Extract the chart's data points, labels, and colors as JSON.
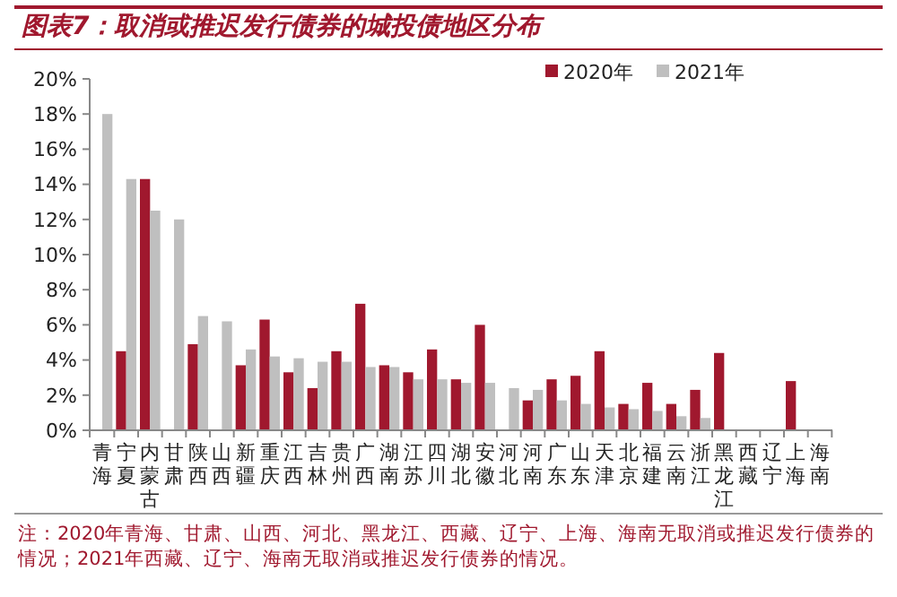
{
  "chart_data": {
    "type": "bar",
    "title": "图表7：取消或推迟发行债券的城投债地区分布",
    "categories": [
      "青海",
      "宁夏",
      "内蒙古",
      "甘肃",
      "陕西",
      "山西",
      "新疆",
      "重庆",
      "江西",
      "吉林",
      "贵州",
      "广西",
      "湖南",
      "江苏",
      "四川",
      "湖北",
      "安徽",
      "河北",
      "河南",
      "广东",
      "山东",
      "天津",
      "北京",
      "福建",
      "云南",
      "浙江",
      "黑龙江",
      "西藏",
      "辽宁",
      "上海",
      "海南"
    ],
    "series": [
      {
        "name": "2020年",
        "color": "#a0182e",
        "values": [
          0,
          4.5,
          14.3,
          0,
          4.9,
          0,
          3.7,
          6.3,
          3.3,
          2.4,
          4.5,
          7.2,
          3.7,
          3.3,
          4.6,
          2.9,
          6.0,
          0,
          1.7,
          2.9,
          3.1,
          4.5,
          1.5,
          2.7,
          1.5,
          2.3,
          4.4,
          0,
          0,
          2.8,
          0
        ]
      },
      {
        "name": "2021年",
        "color": "#bfbfbf",
        "values": [
          18.0,
          14.3,
          12.5,
          12.0,
          6.5,
          6.2,
          4.6,
          4.2,
          4.1,
          3.9,
          3.9,
          3.6,
          3.6,
          2.9,
          2.9,
          2.7,
          2.7,
          2.4,
          2.3,
          1.7,
          1.5,
          1.3,
          1.2,
          1.1,
          0.8,
          0.7,
          0,
          0,
          0,
          0,
          0
        ]
      }
    ],
    "ylim": [
      0,
      20
    ],
    "yticks": [
      {
        "value": 0,
        "label": "0%"
      },
      {
        "value": 2,
        "label": "2%"
      },
      {
        "value": 4,
        "label": "4%"
      },
      {
        "value": 6,
        "label": "6%"
      },
      {
        "value": 8,
        "label": "8%"
      },
      {
        "value": 10,
        "label": "10%"
      },
      {
        "value": 12,
        "label": "12%"
      },
      {
        "value": 14,
        "label": "14%"
      },
      {
        "value": 16,
        "label": "16%"
      },
      {
        "value": 18,
        "label": "18%"
      },
      {
        "value": 20,
        "label": "20%"
      }
    ],
    "grid": false,
    "legend": "top right",
    "annotations": [
      "注：2020年青海、甘肃、山西、河北、黑龙江、西藏、辽宁、上海、海南无取消或推迟发行债券的情况；2021年西藏、辽宁、海南无取消或推迟发行债券的情况。"
    ]
  }
}
